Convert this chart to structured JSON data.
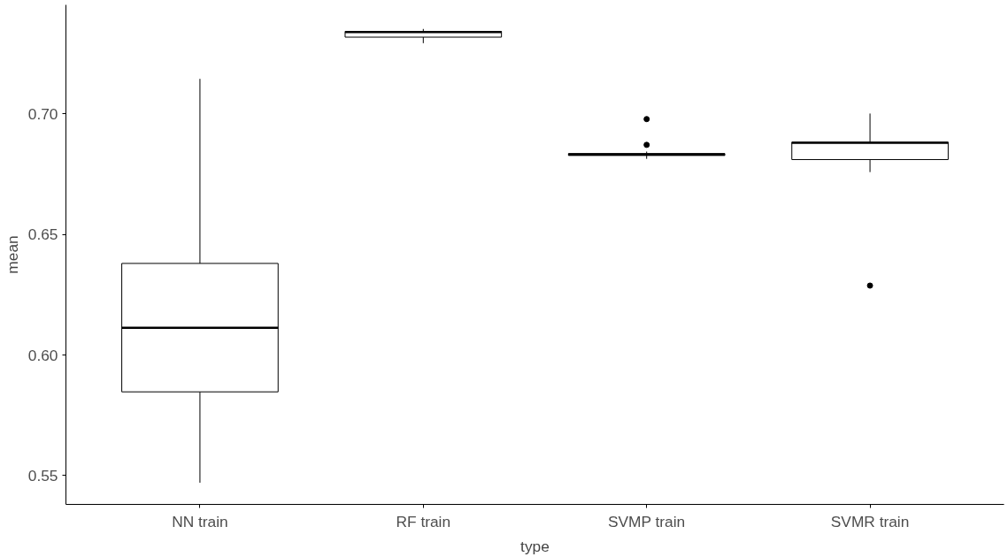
{
  "chart_data": {
    "type": "box",
    "xlabel": "type",
    "ylabel": "mean",
    "categories": [
      "NN train",
      "RF train",
      "SVMP train",
      "SVMR train"
    ],
    "boxes": [
      {
        "low": 0.547,
        "q1": 0.5847,
        "median": 0.6113,
        "q3": 0.638,
        "high": 0.7146
      },
      {
        "low": 0.7294,
        "q1": 0.7319,
        "median": 0.734,
        "q3": 0.7343,
        "high": 0.7353
      },
      {
        "low": 0.6814,
        "q1": 0.6828,
        "median": 0.6832,
        "q3": 0.6836,
        "high": 0.6844,
        "outliers": [
          0.6872,
          0.6979
        ]
      },
      {
        "low": 0.6759,
        "q1": 0.6811,
        "median": 0.6881,
        "q3": 0.6883,
        "high": 0.7002,
        "outliers": [
          0.6288
        ]
      }
    ],
    "ylim": [
      0.538,
      0.7453
    ],
    "yticks": [
      0.55,
      {
        "value": 0.6,
        "label": "0.60"
      },
      0.65,
      {
        "value": 0.7,
        "label": "0.70"
      }
    ],
    "grid": false
  }
}
